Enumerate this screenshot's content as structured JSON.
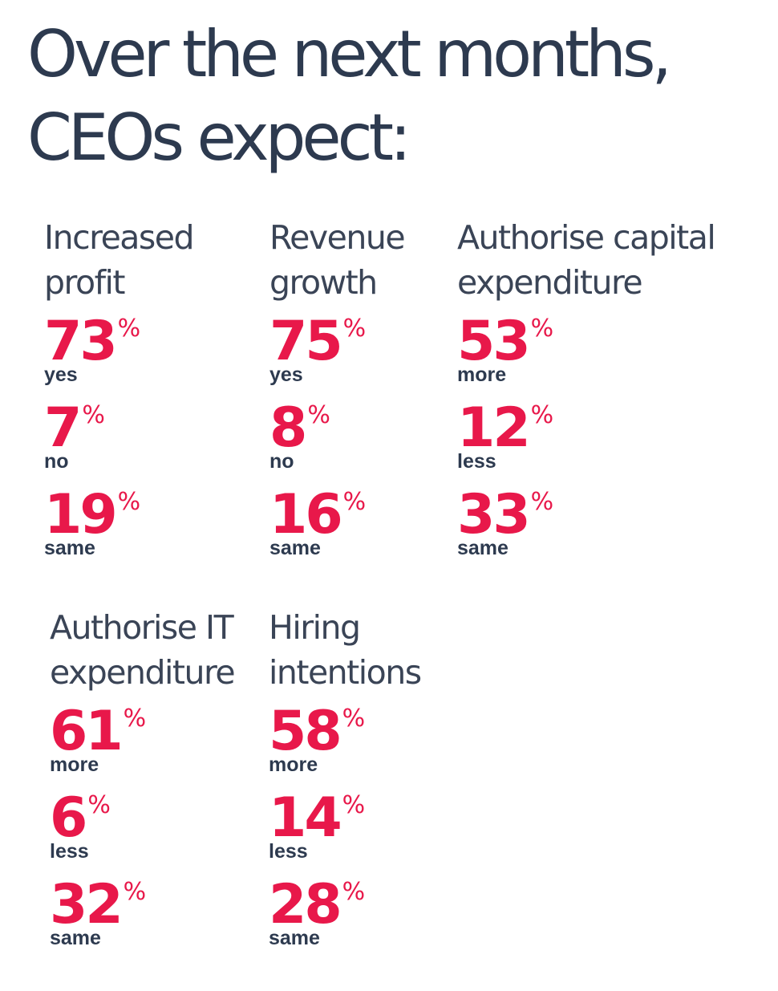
{
  "headline": {
    "line1": "Over the next months,",
    "line2": "CEOs expect:"
  },
  "accent_color": "#e8184a",
  "text_color": "#2d3a4f",
  "blocks": [
    {
      "title_line1": "Increased",
      "title_line2": "profit",
      "stats": [
        {
          "value": "73",
          "unit": "%",
          "label": "yes"
        },
        {
          "value": "7",
          "unit": "%",
          "label": "no"
        },
        {
          "value": "19",
          "unit": "%",
          "label": "same"
        }
      ]
    },
    {
      "title_line1": "Revenue",
      "title_line2": "growth",
      "stats": [
        {
          "value": "75",
          "unit": "%",
          "label": "yes"
        },
        {
          "value": "8",
          "unit": "%",
          "label": "no"
        },
        {
          "value": "16",
          "unit": "%",
          "label": "same"
        }
      ]
    },
    {
      "title_line1": "Authorise capital",
      "title_line2": "expenditure",
      "stats": [
        {
          "value": "53",
          "unit": "%",
          "label": "more"
        },
        {
          "value": "12",
          "unit": "%",
          "label": "less"
        },
        {
          "value": "33",
          "unit": "%",
          "label": "same"
        }
      ]
    },
    {
      "title_line1": "Authorise IT",
      "title_line2": "expenditure",
      "stats": [
        {
          "value": "61",
          "unit": "%",
          "label": "more"
        },
        {
          "value": "6",
          "unit": "%",
          "label": "less"
        },
        {
          "value": "32",
          "unit": "%",
          "label": "same"
        }
      ]
    },
    {
      "title_line1": "Hiring",
      "title_line2": "intentions",
      "stats": [
        {
          "value": "58",
          "unit": "%",
          "label": "more"
        },
        {
          "value": "14",
          "unit": "%",
          "label": "less"
        },
        {
          "value": "28",
          "unit": "%",
          "label": "same"
        }
      ]
    }
  ]
}
